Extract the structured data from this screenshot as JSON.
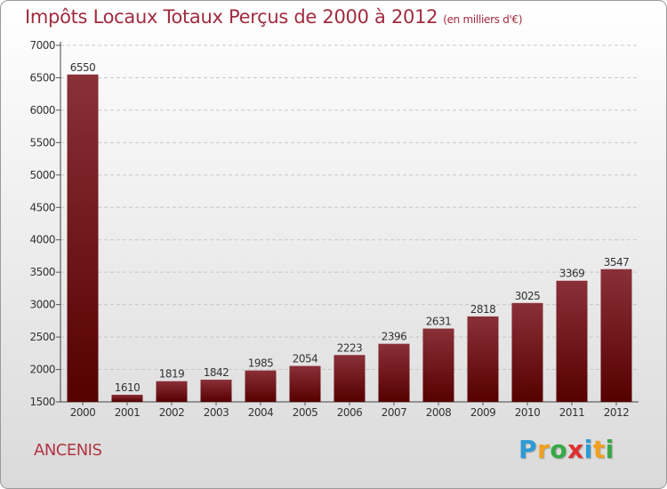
{
  "title": "Impôts Locaux Totaux Perçus de 2000 à 2012",
  "subtitle": "(en milliers d'€)",
  "city": "ANCENIS",
  "logo": {
    "text": "Proxiti",
    "letters": [
      {
        "ch": "P",
        "color": "#2e9ad6"
      },
      {
        "ch": "r",
        "color": "#f0a020"
      },
      {
        "ch": "o",
        "color": "#38a848"
      },
      {
        "ch": "x",
        "color": "#e03030"
      },
      {
        "ch": "i",
        "color": "#2e9ad6"
      },
      {
        "ch": "t",
        "color": "#f0a020"
      },
      {
        "ch": "i",
        "color": "#38a848"
      }
    ]
  },
  "colors": {
    "bar_top": "#8a3038",
    "bar_bottom": "#560000",
    "title": "#a12b3e"
  },
  "chart_data": {
    "type": "bar",
    "categories": [
      "2000",
      "2001",
      "2002",
      "2003",
      "2004",
      "2005",
      "2006",
      "2007",
      "2008",
      "2009",
      "2010",
      "2011",
      "2012"
    ],
    "values": [
      6550,
      1610,
      1819,
      1842,
      1985,
      2054,
      2223,
      2396,
      2631,
      2818,
      3025,
      3369,
      3547
    ],
    "ylim": [
      1500,
      7000
    ],
    "yticks": [
      1500,
      2000,
      2500,
      3000,
      3500,
      4000,
      4500,
      5000,
      5500,
      6000,
      6500,
      7000
    ],
    "grid": true
  }
}
